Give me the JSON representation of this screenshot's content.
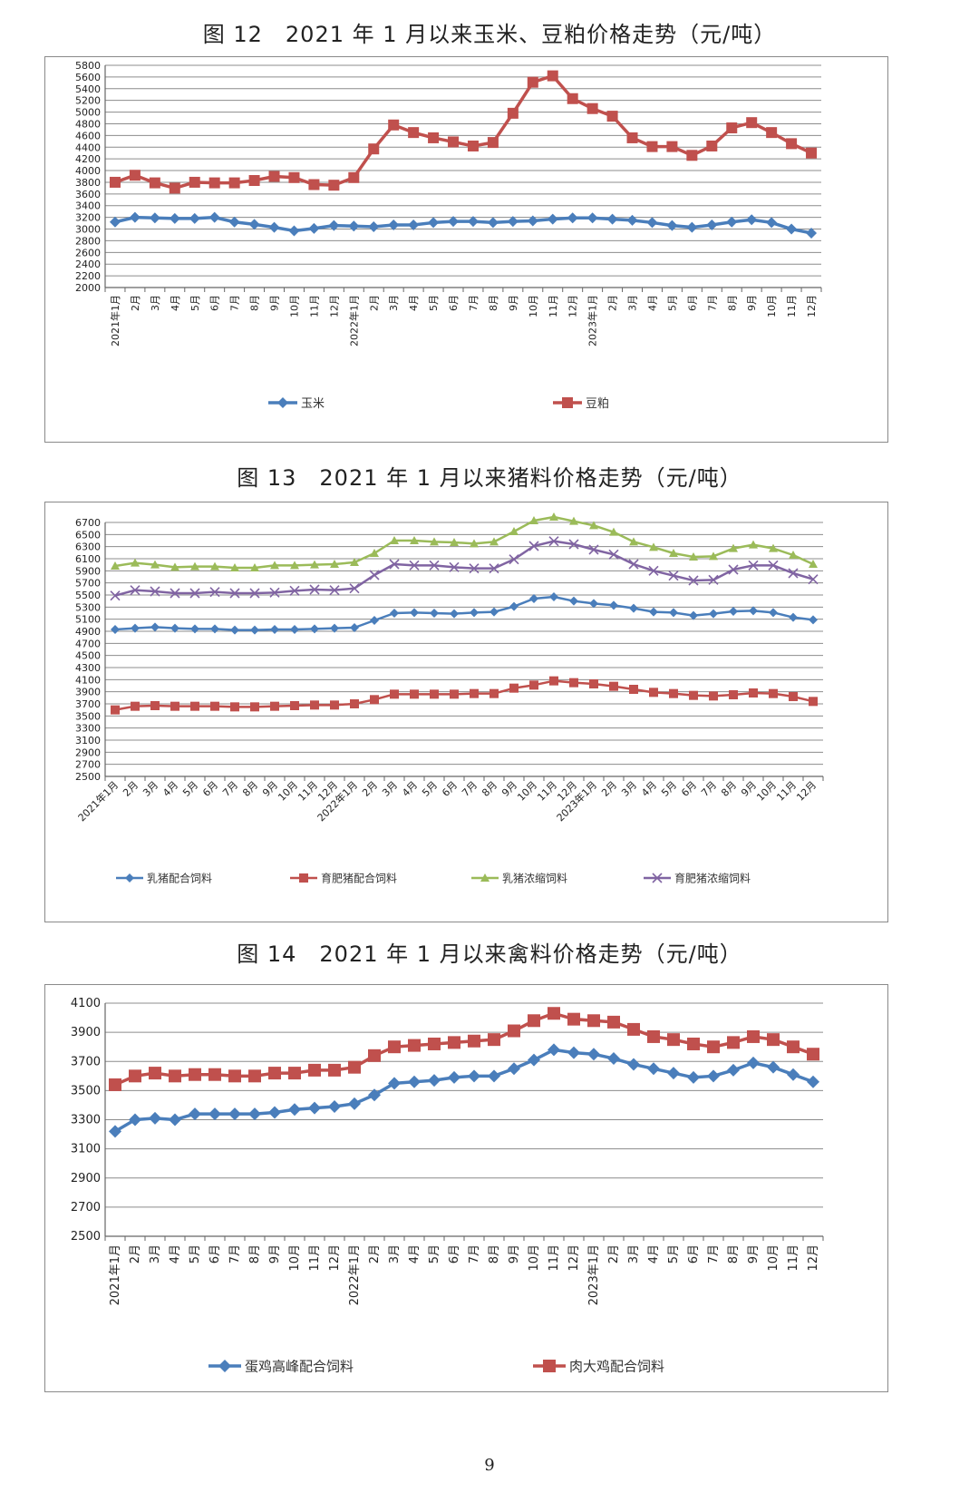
{
  "figures": [
    {
      "title": "图 12　2021 年 1 月以来玉米、豆粕价格走势（元/吨）"
    },
    {
      "title": "图 13　2021 年 1 月以来猪料价格走势（元/吨）"
    },
    {
      "title": "图 14　2021 年 1 月以来禽料价格走势（元/吨）"
    }
  ],
  "page_number": "9",
  "chart_data": [
    {
      "type": "line",
      "title": "图 12　2021 年 1 月以来玉米、豆粕价格走势（元/吨）",
      "categories": [
        "2021年1月",
        "2月",
        "3月",
        "4月",
        "5月",
        "6月",
        "7月",
        "8月",
        "9月",
        "10月",
        "11月",
        "12月",
        "2022年1月",
        "2月",
        "3月",
        "4月",
        "5月",
        "6月",
        "7月",
        "8月",
        "9月",
        "10月",
        "11月",
        "12月",
        "2023年1月",
        "2月",
        "3月",
        "4月",
        "5月",
        "6月",
        "7月",
        "8月",
        "9月",
        "10月",
        "11月",
        "12月"
      ],
      "ylim": [
        2000,
        5800
      ],
      "yticks": [
        2000,
        2200,
        2400,
        2600,
        2800,
        3000,
        3200,
        3400,
        3600,
        3800,
        4000,
        4200,
        4400,
        4600,
        4800,
        5000,
        5200,
        5400,
        5600,
        5800
      ],
      "grid": true,
      "legend_position": "bottom",
      "series": [
        {
          "name": "玉米",
          "color": "#4a7ebb",
          "marker": "diamond",
          "values": [
            3120,
            3200,
            3190,
            3180,
            3180,
            3200,
            3120,
            3080,
            3030,
            2970,
            3010,
            3060,
            3050,
            3040,
            3070,
            3070,
            3110,
            3130,
            3130,
            3110,
            3130,
            3140,
            3170,
            3190,
            3190,
            3170,
            3150,
            3110,
            3060,
            3030,
            3070,
            3120,
            3160,
            3110,
            3000,
            2930
          ]
        },
        {
          "name": "豆粕",
          "color": "#c0504d",
          "marker": "square",
          "values": [
            3800,
            3920,
            3790,
            3700,
            3800,
            3790,
            3790,
            3830,
            3900,
            3880,
            3760,
            3750,
            3880,
            4370,
            4780,
            4650,
            4560,
            4490,
            4420,
            4480,
            4980,
            5510,
            5620,
            5230,
            5060,
            4930,
            4560,
            4410,
            4410,
            4260,
            4420,
            4730,
            4820,
            4650,
            4460,
            4300
          ]
        }
      ]
    },
    {
      "type": "line",
      "title": "图 13　2021 年 1 月以来猪料价格走势（元/吨）",
      "categories": [
        "2021年1月",
        "2月",
        "3月",
        "4月",
        "5月",
        "6月",
        "7月",
        "8月",
        "9月",
        "10月",
        "11月",
        "12月",
        "2022年1月",
        "2月",
        "3月",
        "4月",
        "5月",
        "6月",
        "7月",
        "8月",
        "9月",
        "10月",
        "11月",
        "12月",
        "2023年1月",
        "2月",
        "3月",
        "4月",
        "5月",
        "6月",
        "7月",
        "8月",
        "9月",
        "10月",
        "11月",
        "12月"
      ],
      "ylim": [
        2500,
        6700
      ],
      "yticks": [
        2500,
        2700,
        2900,
        3100,
        3300,
        3500,
        3700,
        3900,
        4100,
        4300,
        4500,
        4700,
        4900,
        5100,
        5300,
        5500,
        5700,
        5900,
        6100,
        6300,
        6500,
        6700
      ],
      "grid": true,
      "legend_position": "bottom",
      "series": [
        {
          "name": "乳猪配合饲料",
          "color": "#4a7ebb",
          "marker": "diamond",
          "values": [
            4930,
            4950,
            4970,
            4950,
            4940,
            4940,
            4920,
            4920,
            4930,
            4930,
            4940,
            4950,
            4960,
            5080,
            5200,
            5210,
            5200,
            5190,
            5210,
            5220,
            5310,
            5440,
            5470,
            5400,
            5360,
            5330,
            5280,
            5220,
            5210,
            5160,
            5190,
            5230,
            5240,
            5210,
            5130,
            5090
          ]
        },
        {
          "name": "育肥猪配合饲料",
          "color": "#c0504d",
          "marker": "square",
          "values": [
            3600,
            3660,
            3670,
            3660,
            3660,
            3660,
            3650,
            3650,
            3660,
            3670,
            3680,
            3680,
            3700,
            3770,
            3860,
            3860,
            3860,
            3860,
            3870,
            3870,
            3960,
            4010,
            4080,
            4050,
            4030,
            3990,
            3940,
            3890,
            3870,
            3840,
            3830,
            3850,
            3880,
            3870,
            3820,
            3740
          ]
        },
        {
          "name": "乳猪浓缩饲料",
          "color": "#9bbb59",
          "marker": "triangle",
          "values": [
            5980,
            6030,
            6000,
            5960,
            5970,
            5970,
            5950,
            5950,
            5990,
            5990,
            6000,
            6010,
            6040,
            6190,
            6400,
            6400,
            6380,
            6370,
            6350,
            6380,
            6550,
            6730,
            6790,
            6720,
            6650,
            6540,
            6380,
            6290,
            6190,
            6130,
            6140,
            6270,
            6330,
            6270,
            6160,
            6010
          ]
        },
        {
          "name": "育肥猪浓缩饲料",
          "color": "#8064a2",
          "marker": "x",
          "values": [
            5490,
            5580,
            5560,
            5530,
            5530,
            5550,
            5530,
            5530,
            5540,
            5570,
            5590,
            5580,
            5610,
            5830,
            6010,
            5990,
            5990,
            5960,
            5940,
            5940,
            6090,
            6310,
            6390,
            6340,
            6250,
            6170,
            6010,
            5900,
            5820,
            5740,
            5750,
            5920,
            5990,
            5990,
            5860,
            5760
          ]
        }
      ]
    },
    {
      "type": "line",
      "title": "图 14　2021 年 1 月以来禽料价格走势（元/吨）",
      "categories": [
        "2021年1月",
        "2月",
        "3月",
        "4月",
        "5月",
        "6月",
        "7月",
        "8月",
        "9月",
        "10月",
        "11月",
        "12月",
        "2022年1月",
        "2月",
        "3月",
        "4月",
        "5月",
        "6月",
        "7月",
        "8月",
        "9月",
        "10月",
        "11月",
        "12月",
        "2023年1月",
        "2月",
        "3月",
        "4月",
        "5月",
        "6月",
        "7月",
        "8月",
        "9月",
        "10月",
        "11月",
        "12月"
      ],
      "ylim": [
        2500,
        4100
      ],
      "yticks": [
        2500,
        2700,
        2900,
        3100,
        3300,
        3500,
        3700,
        3900,
        4100
      ],
      "grid": true,
      "legend_position": "bottom",
      "series": [
        {
          "name": "蛋鸡高峰配合饲料",
          "color": "#4a7ebb",
          "marker": "diamond",
          "values": [
            3220,
            3300,
            3310,
            3300,
            3340,
            3340,
            3340,
            3340,
            3350,
            3370,
            3380,
            3390,
            3410,
            3470,
            3550,
            3560,
            3570,
            3590,
            3600,
            3600,
            3650,
            3710,
            3780,
            3760,
            3750,
            3720,
            3680,
            3650,
            3620,
            3590,
            3600,
            3640,
            3690,
            3660,
            3610,
            3560
          ]
        },
        {
          "name": "肉大鸡配合饲料",
          "color": "#c0504d",
          "marker": "square",
          "values": [
            3540,
            3600,
            3620,
            3600,
            3610,
            3610,
            3600,
            3600,
            3620,
            3620,
            3640,
            3640,
            3660,
            3740,
            3800,
            3810,
            3820,
            3830,
            3840,
            3850,
            3910,
            3980,
            4030,
            3990,
            3980,
            3970,
            3920,
            3870,
            3850,
            3820,
            3800,
            3830,
            3870,
            3850,
            3800,
            3750
          ]
        }
      ]
    }
  ]
}
